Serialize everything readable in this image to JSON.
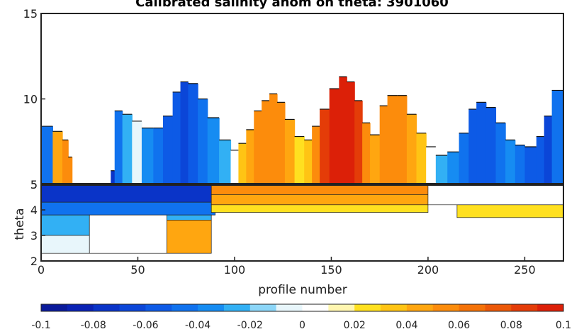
{
  "chart_data": [
    {
      "type": "heatmap",
      "title": "Calibrated salinity anom on theta: 3901060",
      "xlabel": "profile number",
      "ylabel": "theta",
      "panels": [
        {
          "name": "upper",
          "ylim": [
            5,
            15
          ],
          "yticks": [
            5,
            10,
            15
          ]
        },
        {
          "name": "lower",
          "ylim": [
            2,
            5
          ],
          "yticks": [
            2,
            3,
            4,
            5
          ]
        }
      ],
      "xlim": [
        0,
        270
      ],
      "xticks": [
        0,
        50,
        100,
        150,
        200,
        250
      ],
      "grid": false,
      "upper_columns": [
        {
          "x": 0,
          "top": 8.4,
          "anom": -0.05
        },
        {
          "x": 6,
          "top": 8.1,
          "anom": 0.04
        },
        {
          "x": 11,
          "top": 7.6,
          "anom": 0.06
        },
        {
          "x": 14,
          "top": 6.6,
          "anom": 0.06
        },
        {
          "x": 16,
          "top": 5.6,
          "anom": null
        },
        {
          "x": 36,
          "top": 5.8,
          "anom": -0.08
        },
        {
          "x": 38,
          "top": 9.3,
          "anom": -0.05
        },
        {
          "x": 42,
          "top": 9.1,
          "anom": -0.03
        },
        {
          "x": 47,
          "top": 8.7,
          "anom": -0.01
        },
        {
          "x": 52,
          "top": 8.3,
          "anom": -0.04
        },
        {
          "x": 58,
          "top": 8.3,
          "anom": -0.05
        },
        {
          "x": 63,
          "top": 9.0,
          "anom": -0.06
        },
        {
          "x": 68,
          "top": 10.4,
          "anom": -0.06
        },
        {
          "x": 72,
          "top": 11.0,
          "anom": -0.07
        },
        {
          "x": 76,
          "top": 10.9,
          "anom": -0.06
        },
        {
          "x": 81,
          "top": 10.0,
          "anom": -0.05
        },
        {
          "x": 86,
          "top": 8.9,
          "anom": -0.04
        },
        {
          "x": 92,
          "top": 7.6,
          "anom": -0.02
        },
        {
          "x": 98,
          "top": 7.0,
          "anom": 0.0
        },
        {
          "x": 102,
          "top": 7.4,
          "anom": 0.03
        },
        {
          "x": 106,
          "top": 8.2,
          "anom": 0.04
        },
        {
          "x": 110,
          "top": 9.3,
          "anom": 0.05
        },
        {
          "x": 114,
          "top": 9.9,
          "anom": 0.06
        },
        {
          "x": 118,
          "top": 10.3,
          "anom": 0.05
        },
        {
          "x": 122,
          "top": 9.8,
          "anom": 0.05
        },
        {
          "x": 126,
          "top": 8.8,
          "anom": 0.04
        },
        {
          "x": 131,
          "top": 7.8,
          "anom": 0.02
        },
        {
          "x": 136,
          "top": 7.6,
          "anom": 0.03
        },
        {
          "x": 140,
          "top": 8.4,
          "anom": 0.06
        },
        {
          "x": 144,
          "top": 9.4,
          "anom": 0.08
        },
        {
          "x": 149,
          "top": 10.6,
          "anom": 0.09
        },
        {
          "x": 154,
          "top": 11.3,
          "anom": 0.095
        },
        {
          "x": 158,
          "top": 11.0,
          "anom": 0.09
        },
        {
          "x": 162,
          "top": 9.9,
          "anom": 0.08
        },
        {
          "x": 166,
          "top": 8.6,
          "anom": 0.06
        },
        {
          "x": 170,
          "top": 7.9,
          "anom": 0.04
        },
        {
          "x": 175,
          "top": 9.6,
          "anom": 0.05
        },
        {
          "x": 179,
          "top": 10.2,
          "anom": 0.06
        },
        {
          "x": 184,
          "top": 10.2,
          "anom": 0.05
        },
        {
          "x": 189,
          "top": 9.1,
          "anom": 0.04
        },
        {
          "x": 194,
          "top": 8.0,
          "anom": 0.03
        },
        {
          "x": 199,
          "top": 7.2,
          "anom": 0.01
        },
        {
          "x": 204,
          "top": 6.7,
          "anom": -0.02
        },
        {
          "x": 210,
          "top": 6.9,
          "anom": -0.04
        },
        {
          "x": 216,
          "top": 8.0,
          "anom": -0.05
        },
        {
          "x": 221,
          "top": 9.4,
          "anom": -0.06
        },
        {
          "x": 225,
          "top": 9.8,
          "anom": -0.06
        },
        {
          "x": 230,
          "top": 9.5,
          "anom": -0.06
        },
        {
          "x": 235,
          "top": 8.6,
          "anom": -0.05
        },
        {
          "x": 240,
          "top": 7.6,
          "anom": -0.04
        },
        {
          "x": 245,
          "top": 7.3,
          "anom": -0.05
        },
        {
          "x": 250,
          "top": 7.2,
          "anom": -0.06
        },
        {
          "x": 256,
          "top": 7.8,
          "anom": -0.06
        },
        {
          "x": 260,
          "top": 9.0,
          "anom": -0.07
        },
        {
          "x": 264,
          "top": 10.5,
          "anom": -0.05
        }
      ],
      "lower_blocks": [
        {
          "x0": 0,
          "x1": 90,
          "y0": 4.3,
          "y1": 5.0,
          "anom": -0.08
        },
        {
          "x0": 0,
          "x1": 90,
          "y0": 3.8,
          "y1": 4.3,
          "anom": -0.05
        },
        {
          "x0": 0,
          "x1": 25,
          "y0": 3.0,
          "y1": 3.8,
          "anom": -0.03
        },
        {
          "x0": 0,
          "x1": 25,
          "y0": 2.3,
          "y1": 3.0,
          "anom": -0.01
        },
        {
          "x0": 25,
          "x1": 65,
          "y0": 2.3,
          "y1": 3.8,
          "anom": 0.0
        },
        {
          "x0": 65,
          "x1": 88,
          "y0": 3.6,
          "y1": 3.8,
          "anom": -0.02
        },
        {
          "x0": 65,
          "x1": 88,
          "y0": 2.3,
          "y1": 3.6,
          "anom": 0.04
        },
        {
          "x0": 88,
          "x1": 200,
          "y0": 4.6,
          "y1": 5.0,
          "anom": 0.05
        },
        {
          "x0": 88,
          "x1": 200,
          "y0": 4.2,
          "y1": 4.6,
          "anom": 0.04
        },
        {
          "x0": 88,
          "x1": 200,
          "y0": 3.9,
          "y1": 4.2,
          "anom": 0.02
        },
        {
          "x0": 200,
          "x1": 270,
          "y0": 4.2,
          "y1": 5.0,
          "anom": 0.0
        },
        {
          "x0": 215,
          "x1": 270,
          "y0": 3.7,
          "y1": 4.2,
          "anom": 0.02
        }
      ],
      "colorbar": {
        "orientation": "horizontal",
        "range": [
          -0.1,
          0.1
        ],
        "ticks": [
          "-0.1",
          "-0.08",
          "-0.06",
          "-0.04",
          "-0.02",
          "0",
          "0.02",
          "0.04",
          "0.06",
          "0.08",
          "0.1"
        ],
        "colors": [
          "#0a1a9a",
          "#0a22b4",
          "#0a34c8",
          "#0b46d8",
          "#0d5ae6",
          "#1072ee",
          "#168cf2",
          "#32b0f4",
          "#8cd6f8",
          "#e8f6fb",
          "#ffffff",
          "#fff6b0",
          "#ffe020",
          "#ffc414",
          "#ffa610",
          "#fc8c0c",
          "#f47208",
          "#ec5808",
          "#e43c08",
          "#dc2008"
        ]
      }
    }
  ]
}
